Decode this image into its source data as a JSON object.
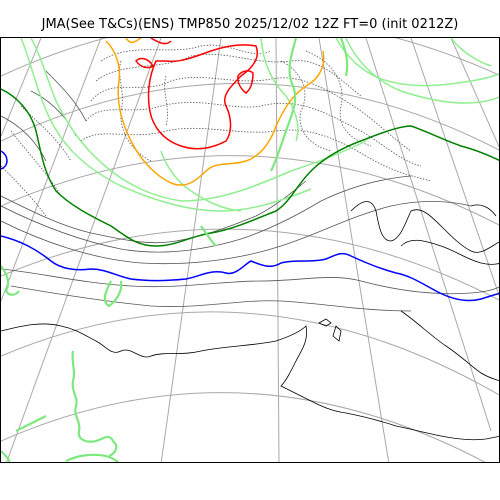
{
  "header": {
    "title": "JMA(See T&Cs)(ENS) TMP850 2025/12/02 12Z FT=0 (init 0212Z)"
  },
  "map": {
    "colors": {
      "coastline": "#000000",
      "graticule": "#a8a8a8",
      "isotherm_gray": "#555555",
      "contour_light_green": "#90ee90",
      "contour_dark_green": "#008000",
      "contour_orange": "#ffa500",
      "contour_red": "#ff0000",
      "contour_blue": "#0000ff",
      "precip_green": "#7ee87e"
    }
  }
}
